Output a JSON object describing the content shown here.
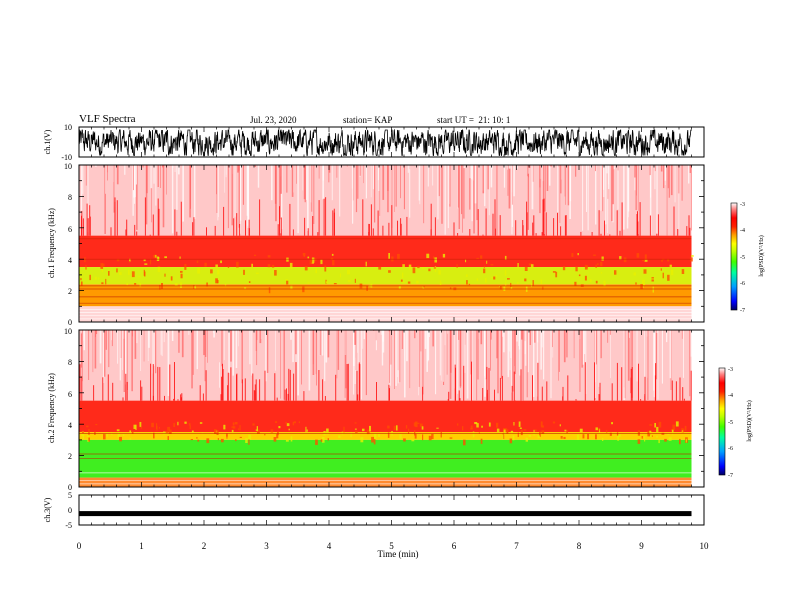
{
  "header": {
    "title": "VLF Spectra",
    "date": "Jul. 23, 2020",
    "station": "station= KAP",
    "start": "start UT =  21: 10: 1"
  },
  "colors": {
    "spectrogram_scale": [
      "#000060",
      "#0000ff",
      "#00a0ff",
      "#00ffa0",
      "#40ff00",
      "#c0ff00",
      "#ffff00",
      "#ffa000",
      "#ff2000",
      "#ff0000",
      "#ff8080",
      "#ffffff"
    ]
  },
  "chart_data": [
    {
      "type": "line",
      "name": "waveform-ch1",
      "ylabel": "ch.1(V)",
      "ylim": [
        -10,
        10
      ],
      "yticks": [
        "10",
        "-10"
      ],
      "xlim": [
        0,
        10
      ],
      "description_values": {
        "min": -8,
        "max": 8
      }
    },
    {
      "type": "heatmap",
      "name": "spectrogram-ch1",
      "ylabel": "ch.1 Frequency (kHz)",
      "ylim": [
        0,
        10
      ],
      "yticks": [
        "0",
        "2",
        "4",
        "6",
        "8",
        "10"
      ],
      "xlim": [
        0,
        9.8
      ],
      "colorbar": {
        "label": "log(PSD)(V²/Hz)",
        "range": [
          -7,
          -3
        ],
        "ticks": [
          "-3",
          "-4",
          "-5",
          "-6",
          "-7"
        ]
      }
    },
    {
      "type": "heatmap",
      "name": "spectrogram-ch2",
      "ylabel": "ch.2 Frequency (kHz)",
      "ylim": [
        0,
        10
      ],
      "yticks": [
        "0",
        "2",
        "4",
        "6",
        "8",
        "10"
      ],
      "xlim": [
        0,
        9.8
      ],
      "colorbar": {
        "label": "log(PSD)(V²/Hz)",
        "range": [
          -7,
          -3
        ],
        "ticks": [
          "-3",
          "-4",
          "-5",
          "-6",
          "-7"
        ]
      }
    },
    {
      "type": "line",
      "name": "waveform-ch3",
      "ylabel": "ch.3(V)",
      "ylim": [
        -5,
        5
      ],
      "yticks": [
        "5",
        "0",
        "-5"
      ],
      "xlim": [
        0,
        10
      ],
      "level": -1.2
    }
  ],
  "xaxis": {
    "label": "Time (min)",
    "ticks": [
      "0",
      "1",
      "2",
      "3",
      "4",
      "5",
      "6",
      "7",
      "8",
      "9",
      "10"
    ],
    "range": [
      0,
      10
    ]
  }
}
